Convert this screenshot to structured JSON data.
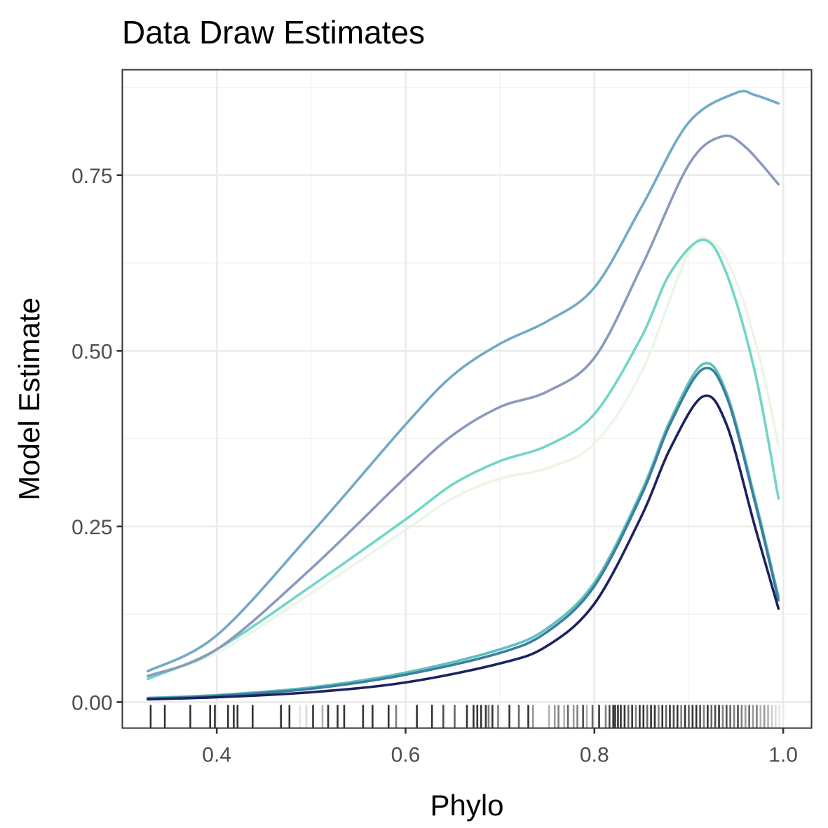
{
  "chart_data": {
    "type": "line",
    "title": "Data Draw Estimates",
    "xlabel": "Phylo",
    "ylabel": "Model Estimate",
    "xlim": [
      0.3,
      1.03
    ],
    "ylim": [
      -0.037,
      0.9
    ],
    "x_ticks": [
      0.4,
      0.6,
      0.8,
      1.0
    ],
    "x_tick_labels": [
      "0.4",
      "0.6",
      "0.8",
      "1.0"
    ],
    "y_ticks": [
      0.0,
      0.25,
      0.5,
      0.75
    ],
    "y_tick_labels": [
      "0.00",
      "0.25",
      "0.50",
      "0.75"
    ],
    "grid": true,
    "legend": "none",
    "series": [
      {
        "color": "#eaf7e6",
        "points": [
          [
            0.327,
            0.036
          ],
          [
            0.4,
            0.07
          ],
          [
            0.5,
            0.155
          ],
          [
            0.6,
            0.245
          ],
          [
            0.65,
            0.29
          ],
          [
            0.7,
            0.318
          ],
          [
            0.75,
            0.333
          ],
          [
            0.8,
            0.368
          ],
          [
            0.85,
            0.47
          ],
          [
            0.9,
            0.64
          ],
          [
            0.925,
            0.655
          ],
          [
            0.95,
            0.6
          ],
          [
            0.975,
            0.49
          ],
          [
            0.995,
            0.365
          ]
        ]
      },
      {
        "color": "#72d6c4",
        "points": [
          [
            0.327,
            0.033
          ],
          [
            0.4,
            0.075
          ],
          [
            0.5,
            0.165
          ],
          [
            0.6,
            0.26
          ],
          [
            0.65,
            0.31
          ],
          [
            0.7,
            0.343
          ],
          [
            0.75,
            0.365
          ],
          [
            0.8,
            0.41
          ],
          [
            0.85,
            0.52
          ],
          [
            0.88,
            0.61
          ],
          [
            0.915,
            0.658
          ],
          [
            0.94,
            0.61
          ],
          [
            0.97,
            0.47
          ],
          [
            0.995,
            0.29
          ]
        ]
      },
      {
        "color": "#8a9abc",
        "points": [
          [
            0.327,
            0.037
          ],
          [
            0.4,
            0.075
          ],
          [
            0.5,
            0.19
          ],
          [
            0.6,
            0.32
          ],
          [
            0.65,
            0.38
          ],
          [
            0.7,
            0.42
          ],
          [
            0.75,
            0.442
          ],
          [
            0.8,
            0.49
          ],
          [
            0.85,
            0.62
          ],
          [
            0.9,
            0.765
          ],
          [
            0.935,
            0.805
          ],
          [
            0.96,
            0.79
          ],
          [
            0.995,
            0.737
          ]
        ]
      },
      {
        "color": "#72aac6",
        "points": [
          [
            0.327,
            0.044
          ],
          [
            0.4,
            0.095
          ],
          [
            0.5,
            0.24
          ],
          [
            0.6,
            0.395
          ],
          [
            0.65,
            0.465
          ],
          [
            0.7,
            0.51
          ],
          [
            0.75,
            0.542
          ],
          [
            0.8,
            0.59
          ],
          [
            0.85,
            0.705
          ],
          [
            0.9,
            0.825
          ],
          [
            0.95,
            0.867
          ],
          [
            0.97,
            0.864
          ],
          [
            0.995,
            0.852
          ]
        ]
      },
      {
        "color": "#5fc1bd",
        "points": [
          [
            0.327,
            0.006
          ],
          [
            0.4,
            0.01
          ],
          [
            0.5,
            0.021
          ],
          [
            0.6,
            0.042
          ],
          [
            0.7,
            0.075
          ],
          [
            0.75,
            0.105
          ],
          [
            0.8,
            0.17
          ],
          [
            0.85,
            0.3
          ],
          [
            0.88,
            0.4
          ],
          [
            0.915,
            0.481
          ],
          [
            0.94,
            0.44
          ],
          [
            0.97,
            0.29
          ],
          [
            0.995,
            0.15
          ]
        ]
      },
      {
        "color": "#3c7ea0",
        "points": [
          [
            0.327,
            0.005
          ],
          [
            0.4,
            0.009
          ],
          [
            0.5,
            0.019
          ],
          [
            0.6,
            0.039
          ],
          [
            0.7,
            0.07
          ],
          [
            0.75,
            0.1
          ],
          [
            0.8,
            0.165
          ],
          [
            0.85,
            0.295
          ],
          [
            0.88,
            0.395
          ],
          [
            0.915,
            0.474
          ],
          [
            0.94,
            0.435
          ],
          [
            0.97,
            0.285
          ],
          [
            0.995,
            0.145
          ]
        ]
      },
      {
        "color": "#1c2260",
        "points": [
          [
            0.327,
            0.004
          ],
          [
            0.4,
            0.007
          ],
          [
            0.5,
            0.014
          ],
          [
            0.6,
            0.028
          ],
          [
            0.7,
            0.055
          ],
          [
            0.75,
            0.08
          ],
          [
            0.8,
            0.14
          ],
          [
            0.85,
            0.265
          ],
          [
            0.88,
            0.36
          ],
          [
            0.915,
            0.435
          ],
          [
            0.94,
            0.395
          ],
          [
            0.97,
            0.25
          ],
          [
            0.995,
            0.133
          ]
        ]
      }
    ],
    "rug": {
      "x": [
        0.33,
        0.345,
        0.372,
        0.393,
        0.398,
        0.412,
        0.418,
        0.422,
        0.438,
        0.468,
        0.477,
        0.488,
        0.495,
        0.502,
        0.512,
        0.518,
        0.528,
        0.535,
        0.555,
        0.565,
        0.582,
        0.59,
        0.612,
        0.628,
        0.64,
        0.652,
        0.665,
        0.672,
        0.676,
        0.68,
        0.685,
        0.688,
        0.692,
        0.698,
        0.71,
        0.72,
        0.73,
        0.735,
        0.752,
        0.758,
        0.762,
        0.768,
        0.772,
        0.778,
        0.782,
        0.788,
        0.792,
        0.798,
        0.805,
        0.812,
        0.816,
        0.82,
        0.822,
        0.825,
        0.828,
        0.832,
        0.836,
        0.84,
        0.844,
        0.848,
        0.852,
        0.856,
        0.86,
        0.864,
        0.868,
        0.872,
        0.876,
        0.88,
        0.884,
        0.888,
        0.892,
        0.896,
        0.9,
        0.904,
        0.908,
        0.912,
        0.916,
        0.92,
        0.924,
        0.928,
        0.932,
        0.936,
        0.94,
        0.944,
        0.948,
        0.952,
        0.956,
        0.96,
        0.964,
        0.968,
        0.972,
        0.976,
        0.98,
        0.984,
        0.988,
        0.992,
        0.996
      ],
      "opacity": [
        0.8,
        0.8,
        0.8,
        0.8,
        0.8,
        0.8,
        0.8,
        0.8,
        0.8,
        0.8,
        0.8,
        0.1,
        0.15,
        0.8,
        0.3,
        0.8,
        0.8,
        0.8,
        0.8,
        0.8,
        0.8,
        0.5,
        0.8,
        0.8,
        0.7,
        0.6,
        0.8,
        0.8,
        0.8,
        0.8,
        0.8,
        0.5,
        0.8,
        0.5,
        0.8,
        0.6,
        0.8,
        0.4,
        0.3,
        0.4,
        0.5,
        0.3,
        0.6,
        0.4,
        0.5,
        0.7,
        0.3,
        0.6,
        0.8,
        0.5,
        0.7,
        0.8,
        0.8,
        0.8,
        0.8,
        0.8,
        0.6,
        0.8,
        0.5,
        0.8,
        0.8,
        0.6,
        0.8,
        0.8,
        0.5,
        0.8,
        0.6,
        0.8,
        0.7,
        0.8,
        0.5,
        0.8,
        0.6,
        0.8,
        0.8,
        0.7,
        0.5,
        0.8,
        0.6,
        0.7,
        0.8,
        0.5,
        0.7,
        0.6,
        0.5,
        0.7,
        0.5,
        0.4,
        0.6,
        0.4,
        0.5,
        0.3,
        0.4,
        0.3,
        0.2,
        0.15,
        0.1
      ]
    }
  }
}
